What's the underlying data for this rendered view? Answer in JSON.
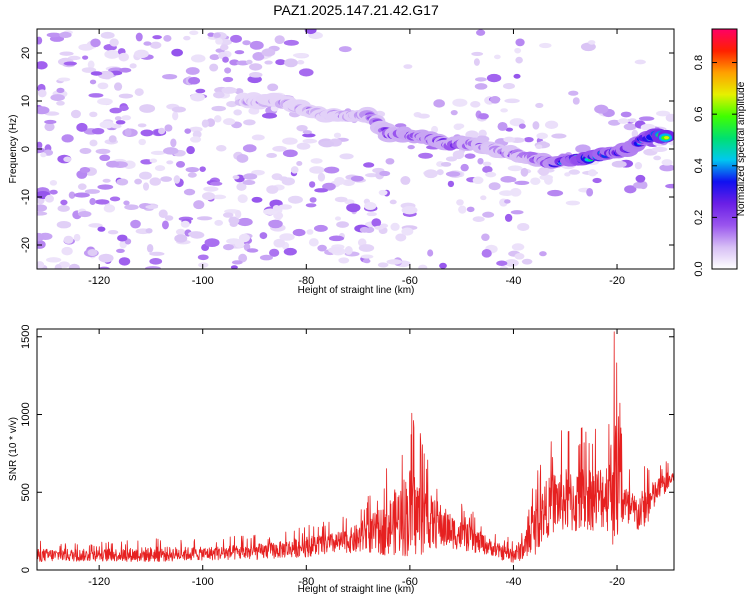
{
  "title": "PAZ1.2025.147.21.42.G17",
  "chart_data": [
    {
      "type": "heatmap",
      "xlabel": "Height of straight line (km)",
      "ylabel": "Frequency (Hz)",
      "xlim": [
        -132,
        -9
      ],
      "ylim": [
        -25,
        25
      ],
      "xticks": [
        -120,
        -100,
        -80,
        -60,
        -40,
        -20
      ],
      "yticks": [
        -20,
        -10,
        0,
        10,
        20
      ],
      "colorbar": {
        "label": "Normalized spectral amplitude",
        "range": [
          0,
          0.93
        ],
        "ticks": [
          0.0,
          0.2,
          0.4,
          0.6,
          0.8
        ],
        "colors": [
          "#ffffff",
          "#d7bff5",
          "#9a55ee",
          "#6a1fe6",
          "#1010f0",
          "#00c8f0",
          "#00e070",
          "#40ff00",
          "#e6f000",
          "#ffa000",
          "#ff2000",
          "#ff0066"
        ]
      },
      "signal_ridge": [
        {
          "x": -92,
          "y": 10,
          "amp": 0.14
        },
        {
          "x": -87,
          "y": 10,
          "amp": 0.16
        },
        {
          "x": -82,
          "y": 9,
          "amp": 0.16
        },
        {
          "x": -77,
          "y": 7,
          "amp": 0.17
        },
        {
          "x": -72,
          "y": 7,
          "amp": 0.18
        },
        {
          "x": -68,
          "y": 7,
          "amp": 0.2
        },
        {
          "x": -64,
          "y": 3,
          "amp": 0.26
        },
        {
          "x": -60,
          "y": 3,
          "amp": 0.3
        },
        {
          "x": -56,
          "y": 2,
          "amp": 0.3
        },
        {
          "x": -52,
          "y": 1,
          "amp": 0.28
        },
        {
          "x": -48,
          "y": 1,
          "amp": 0.26
        },
        {
          "x": -44,
          "y": 0,
          "amp": 0.22
        },
        {
          "x": -40,
          "y": -1,
          "amp": 0.22
        },
        {
          "x": -36,
          "y": -2,
          "amp": 0.25
        },
        {
          "x": -32,
          "y": -3,
          "amp": 0.35
        },
        {
          "x": -28,
          "y": -2,
          "amp": 0.45
        },
        {
          "x": -26,
          "y": -2,
          "amp": 0.55
        },
        {
          "x": -22,
          "y": -1,
          "amp": 0.42
        },
        {
          "x": -18,
          "y": 0,
          "amp": 0.38
        },
        {
          "x": -15,
          "y": 2,
          "amp": 0.4
        },
        {
          "x": -12,
          "y": 3,
          "amp": 0.62
        },
        {
          "x": -10,
          "y": 2,
          "amp": 0.72
        }
      ]
    },
    {
      "type": "line",
      "xlabel": "Height of straight line (km)",
      "ylabel": "SNR (10 * v/v)",
      "xlim": [
        -132,
        -9
      ],
      "ylim": [
        0,
        1550
      ],
      "xticks": [
        -120,
        -100,
        -80,
        -60,
        -40,
        -20
      ],
      "yticks": [
        0,
        500,
        1000,
        1500
      ],
      "series": [
        {
          "color": "#e62020",
          "envelope_x": [
            -132,
            -120,
            -110,
            -100,
            -90,
            -85,
            -80,
            -75,
            -72,
            -70,
            -68,
            -66,
            -64,
            -62,
            -60,
            -58,
            -56,
            -54,
            -52,
            -50,
            -48,
            -46,
            -44,
            -42,
            -40,
            -38,
            -36,
            -34,
            -32,
            -30,
            -28,
            -26,
            -24,
            -22,
            -20.5,
            -19,
            -18,
            -16,
            -14,
            -12,
            -9
          ],
          "mean": [
            95,
            95,
            100,
            105,
            115,
            130,
            150,
            170,
            185,
            200,
            230,
            240,
            280,
            330,
            370,
            340,
            310,
            280,
            250,
            220,
            195,
            170,
            140,
            110,
            95,
            140,
            250,
            380,
            440,
            450,
            430,
            470,
            460,
            490,
            560,
            480,
            380,
            360,
            420,
            520,
            600
          ],
          "max": [
            190,
            180,
            210,
            200,
            230,
            250,
            300,
            320,
            350,
            420,
            500,
            560,
            690,
            850,
            1040,
            900,
            700,
            610,
            500,
            430,
            380,
            320,
            250,
            220,
            210,
            300,
            610,
            790,
            880,
            910,
            900,
            950,
            920,
            1000,
            1550,
            960,
            700,
            640,
            700,
            680,
            720
          ]
        }
      ]
    }
  ]
}
